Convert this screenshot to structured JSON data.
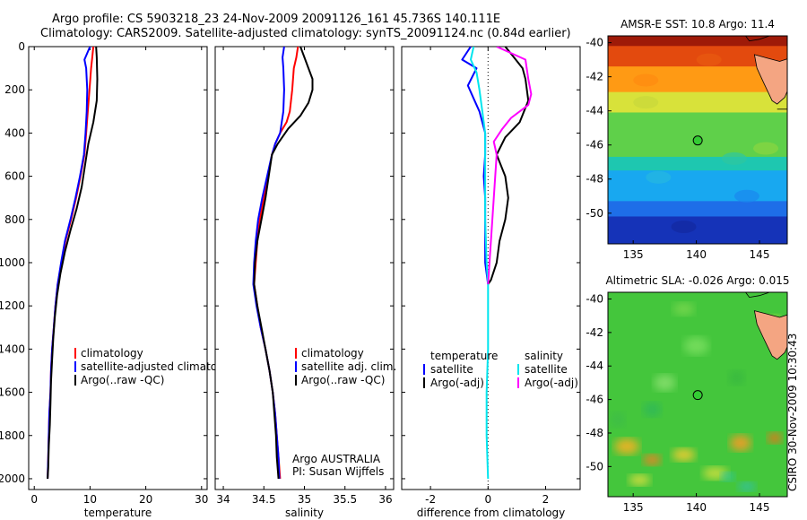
{
  "header": {
    "line1": "Argo profile: CS 5903218_23 24-Nov-2009 20091126_161 45.736S 140.111E",
    "line2": "Climatology: CARS2009. Satellite-adjusted climatology: synTS_20091124.nc (0.84d earlier)"
  },
  "stamp": "CSIRO 30-Nov-2009 10:30:43",
  "colors": {
    "climatology": "#ff0000",
    "satellite": "#0000ff",
    "argo": "#000000",
    "sat_diff_salinity": "#00e5ee",
    "argo_diff_salinity": "#ff00ff",
    "marker": "#33cc33",
    "land": "#f4a582"
  },
  "chart_data": [
    {
      "type": "line",
      "xlabel": "temperature",
      "xlim": [
        -1,
        31
      ],
      "ylim": [
        2050,
        0
      ],
      "xticks": [
        "0",
        "10",
        "20",
        "30"
      ],
      "xtick_values": [
        0,
        10,
        20,
        30
      ],
      "yticks": [
        "0",
        "200",
        "400",
        "600",
        "800",
        "1000",
        "1200",
        "1400",
        "1600",
        "1800",
        "2000"
      ],
      "ytick_values": [
        0,
        200,
        400,
        600,
        800,
        1000,
        1200,
        1400,
        1600,
        1800,
        2000
      ],
      "legend": [
        "climatology",
        "satellite-adjusted climatology",
        "Argo(..raw -QC)"
      ],
      "series": [
        {
          "name": "climatology",
          "color": "#ff0000",
          "points": [
            [
              10.6,
              0
            ],
            [
              10.4,
              50
            ],
            [
              10.2,
              100
            ],
            [
              9.9,
              200
            ],
            [
              9.6,
              300
            ],
            [
              9.3,
              400
            ],
            [
              9.0,
              500
            ],
            [
              8.3,
              600
            ],
            [
              7.5,
              700
            ],
            [
              6.6,
              800
            ],
            [
              5.6,
              900
            ],
            [
              4.9,
              1000
            ],
            [
              4.2,
              1100
            ],
            [
              3.8,
              1200
            ],
            [
              3.5,
              1300
            ],
            [
              3.2,
              1400
            ],
            [
              3.0,
              1500
            ],
            [
              2.9,
              1600
            ],
            [
              2.7,
              1700
            ],
            [
              2.6,
              1800
            ],
            [
              2.5,
              1900
            ],
            [
              2.4,
              2000
            ]
          ]
        },
        {
          "name": "satellite-adjusted climatology",
          "color": "#0000ff",
          "points": [
            [
              10.0,
              0
            ],
            [
              9.0,
              60
            ],
            [
              9.3,
              100
            ],
            [
              9.5,
              200
            ],
            [
              9.4,
              300
            ],
            [
              9.2,
              400
            ],
            [
              8.9,
              500
            ],
            [
              8.2,
              600
            ],
            [
              7.4,
              700
            ],
            [
              6.5,
              800
            ],
            [
              5.5,
              900
            ],
            [
              4.8,
              1000
            ],
            [
              4.2,
              1100
            ],
            [
              3.8,
              1200
            ],
            [
              3.5,
              1300
            ],
            [
              3.2,
              1400
            ],
            [
              3.0,
              1500
            ],
            [
              2.9,
              1600
            ],
            [
              2.7,
              1700
            ],
            [
              2.6,
              1800
            ],
            [
              2.5,
              1900
            ],
            [
              2.4,
              2000
            ]
          ]
        },
        {
          "name": "Argo(..raw -QC)",
          "color": "#000000",
          "points": [
            [
              11.1,
              0
            ],
            [
              11.2,
              50
            ],
            [
              11.3,
              150
            ],
            [
              11.2,
              250
            ],
            [
              10.6,
              350
            ],
            [
              9.7,
              450
            ],
            [
              9.1,
              550
            ],
            [
              8.5,
              650
            ],
            [
              7.6,
              750
            ],
            [
              6.5,
              850
            ],
            [
              5.5,
              950
            ],
            [
              4.7,
              1050
            ],
            [
              4.1,
              1150
            ],
            [
              3.7,
              1250
            ],
            [
              3.4,
              1350
            ],
            [
              3.2,
              1450
            ],
            [
              3.0,
              1550
            ],
            [
              2.9,
              1650
            ],
            [
              2.8,
              1750
            ],
            [
              2.6,
              1850
            ],
            [
              2.5,
              1950
            ],
            [
              2.4,
              2000
            ]
          ]
        }
      ]
    },
    {
      "type": "line",
      "xlabel": "salinity",
      "xlim": [
        33.9,
        36.1
      ],
      "ylim": [
        2050,
        0
      ],
      "xticks": [
        "34",
        "34.5",
        "35",
        "35.5",
        "36"
      ],
      "xtick_values": [
        34,
        34.5,
        35,
        35.5,
        36
      ],
      "legend": [
        "climatology",
        "satellite adj. clim.",
        "Argo(..raw -QC)"
      ],
      "annotations": [
        "Argo AUSTRALIA",
        "PI: Susan Wijffels"
      ],
      "series": [
        {
          "name": "climatology",
          "color": "#ff0000",
          "points": [
            [
              34.92,
              0
            ],
            [
              34.9,
              50
            ],
            [
              34.87,
              100
            ],
            [
              34.85,
              200
            ],
            [
              34.82,
              300
            ],
            [
              34.78,
              350
            ],
            [
              34.7,
              400
            ],
            [
              34.64,
              450
            ],
            [
              34.6,
              500
            ],
            [
              34.55,
              600
            ],
            [
              34.5,
              700
            ],
            [
              34.45,
              800
            ],
            [
              34.42,
              900
            ],
            [
              34.4,
              1000
            ],
            [
              34.38,
              1100
            ],
            [
              34.42,
              1200
            ],
            [
              34.46,
              1300
            ],
            [
              34.52,
              1400
            ],
            [
              34.57,
              1500
            ],
            [
              34.61,
              1600
            ],
            [
              34.64,
              1700
            ],
            [
              34.66,
              1800
            ],
            [
              34.68,
              1900
            ],
            [
              34.7,
              2000
            ]
          ]
        },
        {
          "name": "satellite adj. clim.",
          "color": "#0000ff",
          "points": [
            [
              34.75,
              0
            ],
            [
              34.73,
              50
            ],
            [
              34.74,
              100
            ],
            [
              34.75,
              200
            ],
            [
              34.74,
              300
            ],
            [
              34.7,
              400
            ],
            [
              34.64,
              450
            ],
            [
              34.6,
              500
            ],
            [
              34.54,
              600
            ],
            [
              34.48,
              700
            ],
            [
              34.43,
              800
            ],
            [
              34.4,
              900
            ],
            [
              34.38,
              1000
            ],
            [
              34.37,
              1100
            ],
            [
              34.41,
              1200
            ],
            [
              34.46,
              1300
            ],
            [
              34.52,
              1400
            ],
            [
              34.57,
              1500
            ],
            [
              34.61,
              1600
            ],
            [
              34.64,
              1700
            ],
            [
              34.66,
              1800
            ],
            [
              34.68,
              1900
            ],
            [
              34.69,
              2000
            ]
          ]
        },
        {
          "name": "Argo(..raw -QC)",
          "color": "#000000",
          "points": [
            [
              34.95,
              0
            ],
            [
              35.0,
              50
            ],
            [
              35.05,
              100
            ],
            [
              35.1,
              150
            ],
            [
              35.1,
              200
            ],
            [
              35.05,
              260
            ],
            [
              34.95,
              320
            ],
            [
              34.8,
              380
            ],
            [
              34.67,
              450
            ],
            [
              34.6,
              500
            ],
            [
              34.56,
              600
            ],
            [
              34.52,
              700
            ],
            [
              34.47,
              800
            ],
            [
              34.42,
              900
            ],
            [
              34.39,
              1000
            ],
            [
              34.38,
              1100
            ],
            [
              34.42,
              1200
            ],
            [
              34.47,
              1300
            ],
            [
              34.52,
              1400
            ],
            [
              34.57,
              1500
            ],
            [
              34.61,
              1600
            ],
            [
              34.63,
              1700
            ],
            [
              34.65,
              1800
            ],
            [
              34.66,
              1900
            ],
            [
              34.68,
              2000
            ]
          ]
        }
      ]
    },
    {
      "type": "line",
      "xlabel": "difference from climatology",
      "xlim": [
        -3,
        3.2
      ],
      "ylim": [
        2050,
        0
      ],
      "xticks": [
        "-2",
        "0",
        "2"
      ],
      "xtick_values": [
        -2,
        0,
        2
      ],
      "legend_groups": [
        {
          "title": "temperature",
          "items": [
            {
              "label": "satellite",
              "color": "#0000ff"
            },
            {
              "label": "Argo(-adj)",
              "color": "#000000"
            }
          ]
        },
        {
          "title": "salinity",
          "items": [
            {
              "label": "satellite",
              "color": "#00e5ee"
            },
            {
              "label": "Argo(-adj)",
              "color": "#ff00ff"
            }
          ]
        }
      ],
      "series": [
        {
          "name": "temperature satellite",
          "color": "#0000ff",
          "points": [
            [
              -0.6,
              0
            ],
            [
              -0.9,
              60
            ],
            [
              -0.4,
              100
            ],
            [
              -0.7,
              180
            ],
            [
              -0.5,
              240
            ],
            [
              -0.3,
              300
            ],
            [
              -0.1,
              400
            ],
            [
              -0.1,
              500
            ],
            [
              -0.15,
              600
            ],
            [
              -0.1,
              700
            ],
            [
              -0.1,
              800
            ],
            [
              -0.1,
              900
            ],
            [
              -0.1,
              1000
            ],
            [
              0,
              1100
            ]
          ]
        },
        {
          "name": "temperature Argo(-adj)",
          "color": "#000000",
          "points": [
            [
              0.6,
              0
            ],
            [
              0.9,
              50
            ],
            [
              1.2,
              100
            ],
            [
              1.3,
              150
            ],
            [
              1.4,
              250
            ],
            [
              1.1,
              350
            ],
            [
              0.6,
              420
            ],
            [
              0.3,
              500
            ],
            [
              0.6,
              600
            ],
            [
              0.7,
              700
            ],
            [
              0.6,
              800
            ],
            [
              0.4,
              900
            ],
            [
              0.3,
              1000
            ],
            [
              0.1,
              1080
            ],
            [
              0,
              1100
            ]
          ]
        },
        {
          "name": "salinity satellite",
          "color": "#00e5ee",
          "points": [
            [
              -0.5,
              0
            ],
            [
              -0.6,
              60
            ],
            [
              -0.4,
              120
            ],
            [
              -0.3,
              200
            ],
            [
              -0.2,
              300
            ],
            [
              -0.1,
              400
            ],
            [
              -0.1,
              600
            ],
            [
              -0.1,
              800
            ],
            [
              -0.05,
              1000
            ],
            [
              0,
              1100
            ],
            [
              0,
              1200
            ],
            [
              0,
              1400
            ],
            [
              -0.05,
              1600
            ],
            [
              -0.05,
              1800
            ],
            [
              0,
              2000
            ]
          ]
        },
        {
          "name": "salinity Argo(-adj)",
          "color": "#ff00ff",
          "points": [
            [
              0.3,
              0
            ],
            [
              1.3,
              60
            ],
            [
              1.4,
              150
            ],
            [
              1.5,
              220
            ],
            [
              1.4,
              270
            ],
            [
              0.8,
              330
            ],
            [
              0.5,
              380
            ],
            [
              0.2,
              440
            ],
            [
              0.3,
              500
            ],
            [
              0.25,
              600
            ],
            [
              0.2,
              700
            ],
            [
              0.15,
              800
            ],
            [
              0.1,
              900
            ],
            [
              0.05,
              1000
            ],
            [
              0,
              1100
            ]
          ]
        }
      ]
    },
    {
      "type": "heatmap",
      "title": "AMSR-E SST: 10.8 Argo: 11.4",
      "xlim": [
        133,
        147.2
      ],
      "ylim": [
        -51.8,
        -39.6
      ],
      "xticks": [
        "135",
        "140",
        "145"
      ],
      "xtick_values": [
        135,
        140,
        145
      ],
      "yticks": [
        "-40",
        "-42",
        "-44",
        "-46",
        "-48",
        "-50"
      ],
      "ytick_values": [
        -40,
        -42,
        -44,
        -46,
        -48,
        -50
      ],
      "marker": [
        140.111,
        -45.736
      ],
      "bands": [
        {
          "lat": [
            -39.6,
            -40.3
          ],
          "color": "#9e1a08"
        },
        {
          "lat": [
            -40.3,
            -41.5
          ],
          "color": "#e34a0e"
        },
        {
          "lat": [
            -41.5,
            -43.0
          ],
          "color": "#ff9a14"
        },
        {
          "lat": [
            -43.0,
            -44.2
          ],
          "color": "#d8e23a"
        },
        {
          "lat": [
            -44.2,
            -46.8
          ],
          "color": "#5fd04a"
        },
        {
          "lat": [
            -46.8,
            -47.6
          ],
          "color": "#1ec7b0"
        },
        {
          "lat": [
            -47.6,
            -49.4
          ],
          "color": "#18a8f0"
        },
        {
          "lat": [
            -49.4,
            -50.3
          ],
          "color": "#1e6ee8"
        },
        {
          "lat": [
            -50.3,
            -51.8
          ],
          "color": "#1533b8"
        }
      ]
    },
    {
      "type": "heatmap",
      "title": "Altimetric SLA: -0.026 Argo: 0.015",
      "xlim": [
        133,
        147.2
      ],
      "ylim": [
        -51.8,
        -39.6
      ],
      "xticks": [
        "135",
        "140",
        "145"
      ],
      "xtick_values": [
        135,
        140,
        145
      ],
      "yticks": [
        "-40",
        "-42",
        "-44",
        "-46",
        "-48",
        "-50"
      ],
      "ytick_values": [
        -40,
        -42,
        -44,
        -46,
        -48,
        -50
      ],
      "marker": [
        140.111,
        -45.736
      ],
      "base_color": "#44c63c"
    }
  ]
}
